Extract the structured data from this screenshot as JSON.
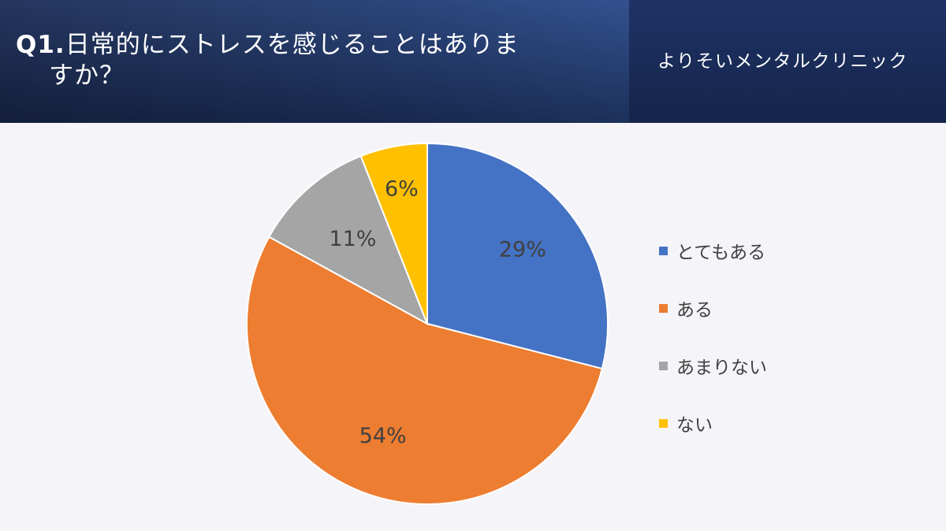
{
  "header": {
    "question_number": "Q1.",
    "question_line1": "日常的にストレスを感じることはありま",
    "question_line2": "すか？",
    "clinic_name": "よりそいメンタルクリニック"
  },
  "chart_data": {
    "type": "pie",
    "title": "Q1.日常的にストレスを感じることはありますか？",
    "categories": [
      "とてもある",
      "ある",
      "あまりない",
      "ない"
    ],
    "values": [
      29,
      54,
      11,
      6
    ],
    "labels": [
      "29%",
      "54%",
      "11%",
      "6%"
    ],
    "colors": [
      "#4472c4",
      "#ed7d31",
      "#a5a5a5",
      "#ffc000"
    ],
    "start_angle_deg": 0,
    "direction": "clockwise",
    "legend_position": "right"
  }
}
